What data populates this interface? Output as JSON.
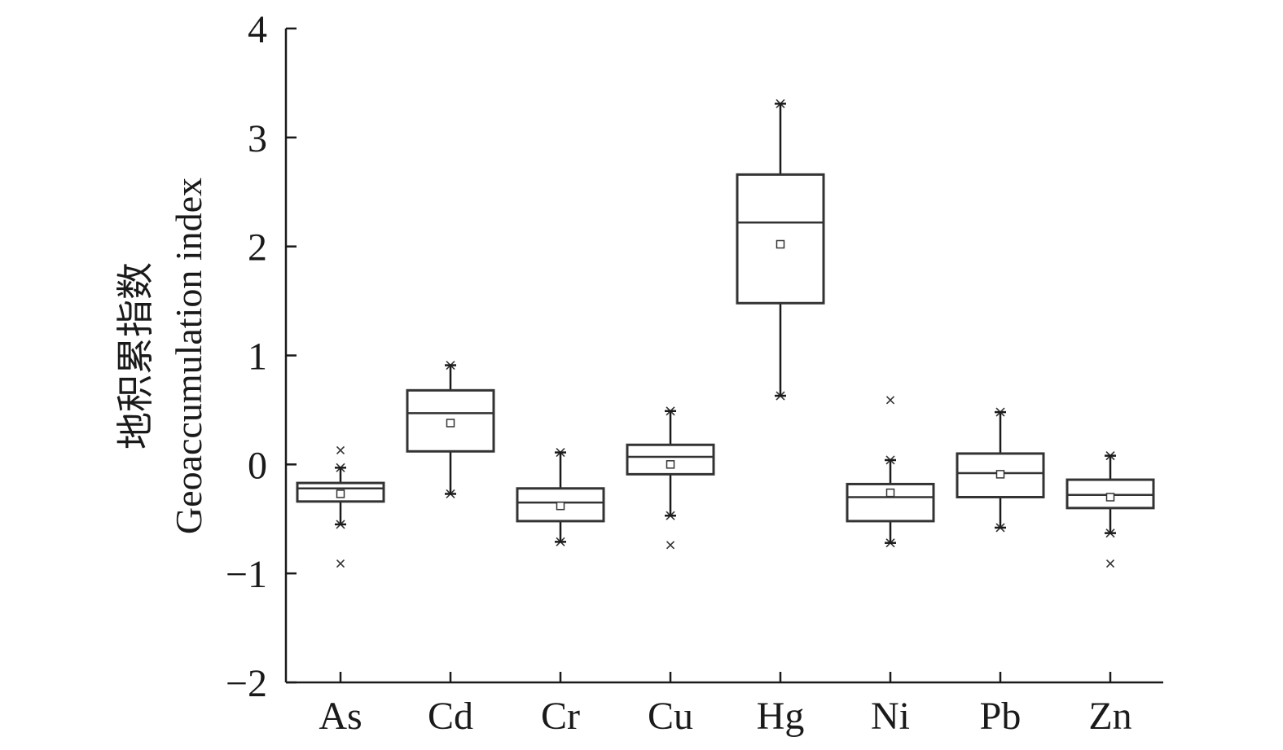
{
  "chart_data": {
    "type": "box",
    "ylabel_zh": "地积累指数",
    "ylabel_en": "Geoaccumulation index",
    "xlabel": "",
    "ylim": [
      -2,
      4
    ],
    "yticks": [
      -2,
      -1,
      0,
      1,
      2,
      3,
      4
    ],
    "ytick_labels": [
      "−2",
      "−1",
      "0",
      "1",
      "2",
      "3",
      "4"
    ],
    "categories": [
      "As",
      "Cd",
      "Cr",
      "Cu",
      "Hg",
      "Ni",
      "Pb",
      "Zn"
    ],
    "boxes": [
      {
        "name": "As",
        "whisker_low": -0.55,
        "q1": -0.34,
        "median": -0.22,
        "q3": -0.17,
        "whisker_high": -0.03,
        "mean": -0.27,
        "outliers": [
          0.13,
          -0.91
        ]
      },
      {
        "name": "Cd",
        "whisker_low": -0.27,
        "q1": 0.12,
        "median": 0.47,
        "q3": 0.68,
        "whisker_high": 0.91,
        "mean": 0.38,
        "outliers": []
      },
      {
        "name": "Cr",
        "whisker_low": -0.71,
        "q1": -0.52,
        "median": -0.35,
        "q3": -0.22,
        "whisker_high": 0.11,
        "mean": -0.38,
        "outliers": []
      },
      {
        "name": "Cu",
        "whisker_low": -0.47,
        "q1": -0.09,
        "median": 0.07,
        "q3": 0.18,
        "whisker_high": 0.49,
        "mean": 0.0,
        "outliers": [
          -0.74
        ]
      },
      {
        "name": "Hg",
        "whisker_low": 0.63,
        "q1": 1.48,
        "median": 2.22,
        "q3": 2.66,
        "whisker_high": 3.31,
        "mean": 2.02,
        "outliers": []
      },
      {
        "name": "Ni",
        "whisker_low": -0.72,
        "q1": -0.52,
        "median": -0.3,
        "q3": -0.18,
        "whisker_high": 0.04,
        "mean": -0.26,
        "outliers": [
          0.59
        ]
      },
      {
        "name": "Pb",
        "whisker_low": -0.58,
        "q1": -0.3,
        "median": -0.08,
        "q3": 0.1,
        "whisker_high": 0.48,
        "mean": -0.09,
        "outliers": []
      },
      {
        "name": "Zn",
        "whisker_low": -0.63,
        "q1": -0.4,
        "median": -0.28,
        "q3": -0.14,
        "whisker_high": 0.08,
        "mean": -0.3,
        "outliers": [
          -0.91
        ]
      }
    ],
    "grid": false,
    "legend": "none"
  }
}
